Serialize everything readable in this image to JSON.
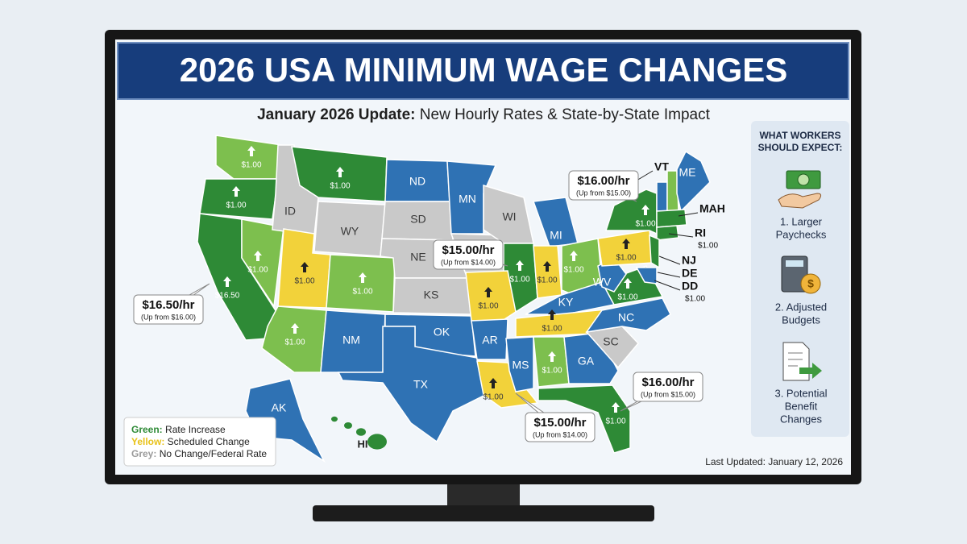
{
  "header": {
    "title": "2026 USA MINIMUM WAGE CHANGES",
    "subtitle_bold": "January 2026 Update:",
    "subtitle_rest": " New Hourly Rates & State-by-State Impact"
  },
  "map": {
    "states": [
      {
        "color": "#7dbf4e",
        "change": "$1.00"
      },
      {
        "color": "#2e8a36",
        "change": "$1.00"
      },
      {
        "color": "#2e8a36",
        "change": "$16.50"
      },
      {
        "color": "#7dbf4e",
        "change": "$1.00"
      },
      {
        "abbr": "ID",
        "color": "#c9c9c9"
      },
      {
        "color": "#2e8a36",
        "change": "$1.00"
      },
      {
        "abbr": "WY",
        "color": "#c9c9c9"
      },
      {
        "color": "#f2d23a",
        "change": "$1.00"
      },
      {
        "color": "#7dbf4e",
        "change": "$1.00"
      },
      {
        "color": "#7dbf4e",
        "change": "$1.00"
      },
      {
        "abbr": "NM",
        "color": "#2f72b4"
      },
      {
        "abbr": "ND",
        "color": "#2f72b4"
      },
      {
        "abbr": "SD",
        "color": "#c9c9c9"
      },
      {
        "abbr": "NE",
        "color": "#c9c9c9"
      },
      {
        "abbr": "KS",
        "color": "#c9c9c9"
      },
      {
        "abbr": "OK",
        "color": "#2f72b4"
      },
      {
        "abbr": "TX",
        "color": "#2f72b4"
      },
      {
        "abbr": "MN",
        "color": "#2f72b4"
      },
      {
        "color": "#c9c9c9"
      },
      {
        "abbr": "WI",
        "color": "#c9c9c9"
      },
      {
        "abbr": "MI",
        "color": "#2f72b4"
      },
      {
        "color": "#2e8a36",
        "change": "$1.00"
      },
      {
        "color": "#f2d23a",
        "change": "$1.00"
      },
      {
        "abbr": "AR",
        "color": "#2f72b4"
      },
      {
        "color": "#f2d23a",
        "change": "$1.00"
      },
      {
        "abbr": "MS",
        "color": "#2f72b4"
      },
      {
        "color": "#f2d23a",
        "change": "$1.00"
      },
      {
        "color": "#7dbf4e",
        "change": "$1.00"
      },
      {
        "abbr": "KY",
        "color": "#2f72b4"
      },
      {
        "color": "#f2d23a",
        "change": "$1.00"
      },
      {
        "color": "#7dbf4e",
        "change": "$1.00"
      },
      {
        "abbr": "GA",
        "color": "#2f72b4"
      },
      {
        "color": "#2e8a36",
        "change": "$1.00"
      },
      {
        "abbr": "SC",
        "color": "#c9c9c9"
      },
      {
        "abbr": "NC",
        "color": "#2f72b4"
      },
      {
        "color": "#2e8a36",
        "change": "$1.00"
      },
      {
        "abbr": "WV",
        "color": "#2f72b4"
      },
      {
        "color": "#f2d23a",
        "change": "$1.00"
      },
      {
        "color": "#2e8a36",
        "change": "$1.00"
      },
      {
        "color": "#2f72b4"
      },
      {
        "color": "#7dbf4e"
      },
      {
        "abbr": "ME",
        "color": "#2f72b4"
      },
      {
        "color": "#2e8a36"
      },
      {
        "color": "#2e8a36"
      },
      {
        "color": "#2e8a36"
      },
      {
        "color": "#2f72b4"
      },
      {
        "abbr": "AK",
        "color": "#2f72b4"
      },
      {
        "abbr": "HI",
        "color": "#2e8a36"
      }
    ],
    "annotations": [
      {
        "text": "VT"
      },
      {
        "text": "MAH"
      },
      {
        "text": "RI",
        "change": "$1.00"
      },
      {
        "text": "NJ"
      },
      {
        "text": "DE"
      },
      {
        "text": "DD",
        "change": "$1.00"
      }
    ],
    "callouts": [
      {
        "rate": "$16.00/hr",
        "note": "(Up from $15.00)"
      },
      {
        "rate": "$15.00/hr",
        "note": "(Up from $14.00)"
      },
      {
        "rate": "$16.50/hr",
        "note": "(Up from $16.00)"
      },
      {
        "rate": "$16.00/hr",
        "note": "(Up from $15.00)"
      },
      {
        "rate": "$15.00/hr",
        "note": "(Up from $14.00)"
      }
    ]
  },
  "legend": [
    {
      "key": "Green:",
      "text": " Rate Increase",
      "color": "#2e8a36"
    },
    {
      "key": "Yellow:",
      "text": " Scheduled Change",
      "color": "#e8c21a"
    },
    {
      "key": "Grey:",
      "text": " No Change/Federal Rate",
      "color": "#9a9a9a"
    }
  ],
  "sidebar": {
    "title": [
      "WHAT WORKERS",
      "SHOULD EXPECT:"
    ],
    "items": [
      [
        "1. Larger",
        "Paychecks"
      ],
      [
        "2. Adjusted",
        "Budgets"
      ],
      [
        "3. Potential",
        "Benefit",
        "Changes"
      ]
    ]
  },
  "footer": "Last Updated: January 12, 2026"
}
